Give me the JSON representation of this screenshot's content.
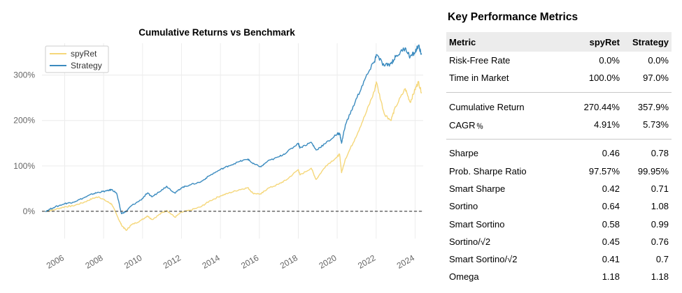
{
  "chart_data": {
    "type": "line",
    "title": "Cumulative Returns vs Benchmark",
    "xlabel": "",
    "ylabel": "",
    "x_range": [
      "2004-11-01",
      "2024-06-01"
    ],
    "ylim": [
      -60,
      370
    ],
    "y_ticks": [
      0,
      100,
      200,
      300
    ],
    "y_tick_labels": [
      "0%",
      "100%",
      "200%",
      "300%"
    ],
    "x_ticks": [
      "2006",
      "2008",
      "2010",
      "2012",
      "2014",
      "2016",
      "2018",
      "2020",
      "2022",
      "2024"
    ],
    "grid": true,
    "legend": "top-left",
    "baseline": 0,
    "series": [
      {
        "name": "spyRet",
        "color": "#f5d77a",
        "points": [
          [
            "2005-01-01",
            0
          ],
          [
            "2005-06-01",
            3
          ],
          [
            "2006-01-01",
            10
          ],
          [
            "2006-06-01",
            12
          ],
          [
            "2007-01-01",
            20
          ],
          [
            "2007-06-01",
            28
          ],
          [
            "2007-10-01",
            32
          ],
          [
            "2008-03-01",
            22
          ],
          [
            "2008-06-01",
            16
          ],
          [
            "2008-10-01",
            -15
          ],
          [
            "2008-12-01",
            -30
          ],
          [
            "2009-03-01",
            -42
          ],
          [
            "2009-06-01",
            -30
          ],
          [
            "2009-12-01",
            -20
          ],
          [
            "2010-04-01",
            -10
          ],
          [
            "2010-07-01",
            -18
          ],
          [
            "2011-01-01",
            -3
          ],
          [
            "2011-04-01",
            2
          ],
          [
            "2011-09-01",
            -13
          ],
          [
            "2012-01-01",
            -2
          ],
          [
            "2012-06-01",
            2
          ],
          [
            "2013-01-01",
            10
          ],
          [
            "2013-06-01",
            22
          ],
          [
            "2014-01-01",
            34
          ],
          [
            "2014-06-01",
            40
          ],
          [
            "2015-01-01",
            48
          ],
          [
            "2015-06-01",
            52
          ],
          [
            "2015-09-01",
            40
          ],
          [
            "2016-02-01",
            38
          ],
          [
            "2016-06-01",
            50
          ],
          [
            "2017-01-01",
            60
          ],
          [
            "2017-06-01",
            70
          ],
          [
            "2018-01-01",
            92
          ],
          [
            "2018-02-01",
            80
          ],
          [
            "2018-09-01",
            95
          ],
          [
            "2018-12-01",
            70
          ],
          [
            "2019-06-01",
            100
          ],
          [
            "2020-01-01",
            120
          ],
          [
            "2020-02-15",
            126
          ],
          [
            "2020-03-23",
            85
          ],
          [
            "2020-06-01",
            115
          ],
          [
            "2020-12-01",
            160
          ],
          [
            "2021-06-01",
            210
          ],
          [
            "2021-12-01",
            265
          ],
          [
            "2022-01-03",
            285
          ],
          [
            "2022-06-01",
            215
          ],
          [
            "2022-10-01",
            200
          ],
          [
            "2023-01-01",
            230
          ],
          [
            "2023-07-01",
            270
          ],
          [
            "2023-10-01",
            240
          ],
          [
            "2024-01-01",
            268
          ],
          [
            "2024-03-01",
            285
          ],
          [
            "2024-05-01",
            262
          ]
        ]
      },
      {
        "name": "Strategy",
        "color": "#3b8bbf",
        "points": [
          [
            "2005-01-01",
            0
          ],
          [
            "2005-06-01",
            8
          ],
          [
            "2006-01-01",
            17
          ],
          [
            "2006-06-01",
            20
          ],
          [
            "2007-01-01",
            30
          ],
          [
            "2007-06-01",
            38
          ],
          [
            "2007-10-01",
            42
          ],
          [
            "2008-03-01",
            45
          ],
          [
            "2008-06-01",
            48
          ],
          [
            "2008-09-01",
            40
          ],
          [
            "2008-12-01",
            -5
          ],
          [
            "2009-03-01",
            0
          ],
          [
            "2009-06-01",
            12
          ],
          [
            "2009-12-01",
            25
          ],
          [
            "2010-04-01",
            40
          ],
          [
            "2010-07-01",
            32
          ],
          [
            "2011-01-01",
            48
          ],
          [
            "2011-04-01",
            55
          ],
          [
            "2011-09-01",
            40
          ],
          [
            "2012-01-01",
            52
          ],
          [
            "2012-06-01",
            58
          ],
          [
            "2013-01-01",
            65
          ],
          [
            "2013-06-01",
            78
          ],
          [
            "2014-01-01",
            92
          ],
          [
            "2014-06-01",
            100
          ],
          [
            "2015-01-01",
            110
          ],
          [
            "2015-06-01",
            115
          ],
          [
            "2015-09-01",
            105
          ],
          [
            "2016-02-01",
            98
          ],
          [
            "2016-06-01",
            110
          ],
          [
            "2017-01-01",
            120
          ],
          [
            "2017-06-01",
            130
          ],
          [
            "2018-01-01",
            150
          ],
          [
            "2018-02-01",
            140
          ],
          [
            "2018-09-01",
            152
          ],
          [
            "2018-12-01",
            135
          ],
          [
            "2019-06-01",
            150
          ],
          [
            "2020-01-01",
            170
          ],
          [
            "2020-02-15",
            172
          ],
          [
            "2020-03-23",
            150
          ],
          [
            "2020-06-01",
            190
          ],
          [
            "2020-12-01",
            240
          ],
          [
            "2021-06-01",
            290
          ],
          [
            "2021-12-01",
            330
          ],
          [
            "2022-01-03",
            345
          ],
          [
            "2022-06-01",
            320
          ],
          [
            "2022-10-01",
            325
          ],
          [
            "2023-01-01",
            340
          ],
          [
            "2023-07-01",
            360
          ],
          [
            "2023-10-01",
            340
          ],
          [
            "2024-01-01",
            350
          ],
          [
            "2024-03-01",
            365
          ],
          [
            "2024-05-01",
            345
          ]
        ]
      }
    ]
  },
  "metrics": {
    "title": "Key Performance Metrics",
    "headers": [
      "Metric",
      "spyRet",
      "Strategy"
    ],
    "groups": [
      [
        [
          "Risk-Free Rate",
          "0.0%",
          "0.0%"
        ],
        [
          "Time in Market",
          "100.0%",
          "97.0%"
        ]
      ],
      [
        [
          "Cumulative Return",
          "270.44%",
          "357.9%"
        ],
        [
          "CAGR﹪",
          "4.91%",
          "5.73%"
        ]
      ],
      [
        [
          "Sharpe",
          "0.46",
          "0.78"
        ],
        [
          "Prob. Sharpe Ratio",
          "97.57%",
          "99.95%"
        ],
        [
          "Smart Sharpe",
          "0.42",
          "0.71"
        ],
        [
          "Sortino",
          "0.64",
          "1.08"
        ],
        [
          "Smart Sortino",
          "0.58",
          "0.99"
        ],
        [
          "Sortino/√2",
          "0.45",
          "0.76"
        ],
        [
          "Smart Sortino/√2",
          "0.41",
          "0.7"
        ],
        [
          "Omega",
          "1.18",
          "1.18"
        ]
      ]
    ]
  }
}
